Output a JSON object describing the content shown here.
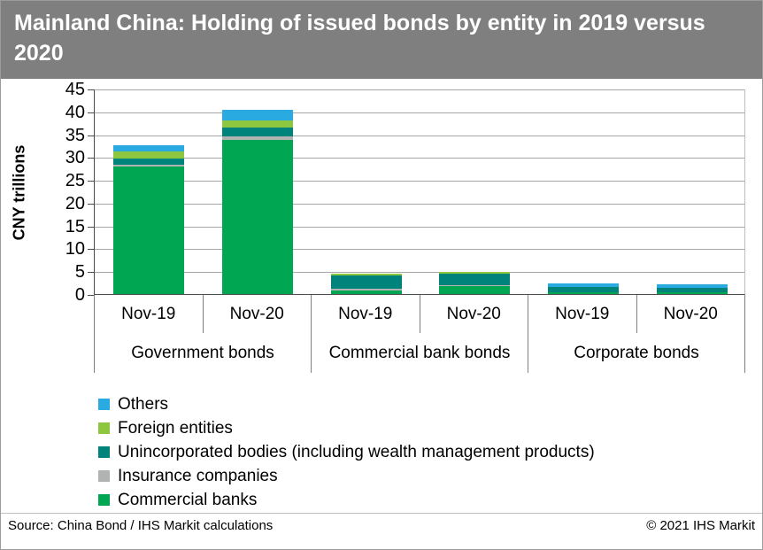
{
  "title": "Mainland China: Holding of issued bonds by entity in 2019 versus 2020",
  "y_axis": {
    "label": "CNY trillions",
    "ticks": [
      45,
      40,
      35,
      30,
      25,
      20,
      15,
      10,
      5,
      0
    ]
  },
  "chart_data": {
    "type": "bar",
    "stacked": true,
    "title": "Mainland China: Holding of issued bonds by entity in 2019 versus 2020",
    "ylabel": "CNY trillions",
    "ylim": [
      0,
      45
    ],
    "grid": true,
    "legend_position": "bottom",
    "categories": [
      "Nov-19",
      "Nov-20",
      "Nov-19",
      "Nov-20",
      "Nov-19",
      "Nov-20"
    ],
    "groups": [
      "Government bonds",
      "Commercial bank bonds",
      "Corporate bonds"
    ],
    "series": [
      {
        "name": "Commercial banks",
        "color": "#00a651",
        "values": [
          27.9,
          33.8,
          0.8,
          1.7,
          0.3,
          0.3
        ]
      },
      {
        "name": "Insurance companies",
        "color": "#b0b3b2",
        "values": [
          0.5,
          0.7,
          0.4,
          0.2,
          0.0,
          0.0
        ]
      },
      {
        "name": "Unincorporated bodies (including wealth management products)",
        "color": "#00837b",
        "values": [
          1.3,
          1.9,
          2.8,
          2.5,
          1.2,
          1.1
        ]
      },
      {
        "name": "Foreign entities",
        "color": "#8dc63f",
        "values": [
          1.5,
          1.6,
          0.5,
          0.5,
          0.0,
          0.0
        ]
      },
      {
        "name": "Others",
        "color": "#29abe2",
        "values": [
          1.4,
          2.3,
          0.0,
          0.0,
          0.9,
          0.7
        ]
      }
    ]
  },
  "legend": {
    "items": [
      {
        "label": "Others",
        "color": "#29abe2"
      },
      {
        "label": "Foreign entities",
        "color": "#8dc63f"
      },
      {
        "label": "Unincorporated bodies (including wealth management products)",
        "color": "#00837b"
      },
      {
        "label": "Insurance companies",
        "color": "#b0b3b2"
      },
      {
        "label": "Commercial banks",
        "color": "#00a651"
      }
    ]
  },
  "footer": {
    "source": "Source: China Bond / IHS Markit calculations",
    "copyright": "© 2021 IHS Markit"
  }
}
